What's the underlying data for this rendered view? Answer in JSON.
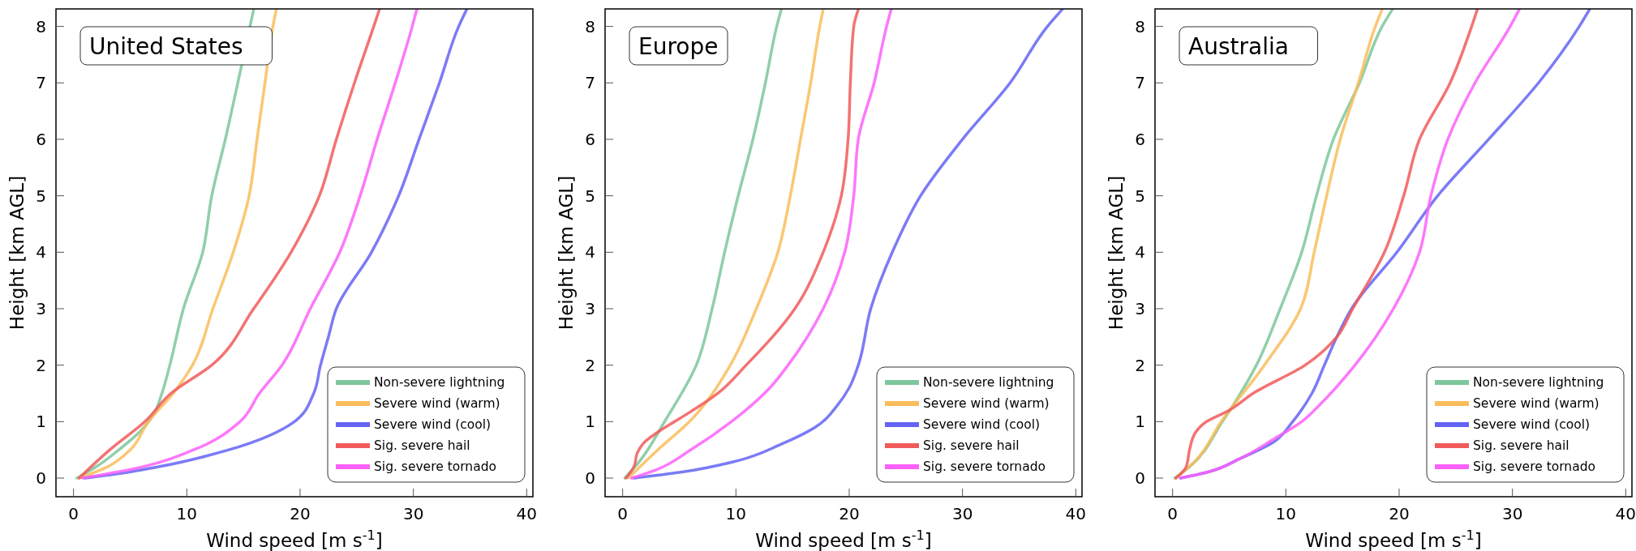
{
  "chart_data": [
    {
      "type": "line",
      "title": "United States",
      "xlabel": "Wind speed [m s$^{-1}$]",
      "ylabel": "Height [km AGL]",
      "xlim": [
        -1.55,
        40.55
      ],
      "ylim": [
        -0.33,
        8.31
      ],
      "xticks": [
        0,
        10,
        20,
        30,
        40
      ],
      "yticks": [
        0,
        1,
        2,
        3,
        4,
        5,
        6,
        7,
        8
      ],
      "grid": false,
      "legend": "bottom right",
      "line_style": "solid",
      "marker": "none",
      "series": [
        {
          "name": "Non-severe lightning",
          "color": "#7cc79b",
          "x": [
            0.3,
            2,
            4,
            6,
            7,
            7.8,
            8.5,
            9.7,
            11.4,
            12.2,
            13.4,
            14.5,
            15.9
          ],
          "values": [
            0,
            0.2,
            0.5,
            0.85,
            1.1,
            1.5,
            2,
            3,
            4,
            5,
            6,
            7,
            8.3
          ]
        },
        {
          "name": "Severe wind (warm)",
          "color": "#f9bd5b",
          "x": [
            0.5,
            3,
            5,
            6.6,
            8.8,
            10.5,
            12.3,
            14.1,
            15.5,
            16.2,
            16.9,
            17.6,
            17.9
          ],
          "values": [
            0,
            0.2,
            0.5,
            1,
            1.5,
            2,
            3,
            4,
            5,
            6,
            7,
            8,
            8.3
          ]
        },
        {
          "name": "Severe wind (cool)",
          "color": "#6464f4",
          "x": [
            1,
            4,
            7.5,
            13.7,
            19.5,
            21.2,
            21.8,
            22.5,
            23.2,
            26.3,
            28.7,
            30.5,
            32.3,
            34,
            34.7
          ],
          "values": [
            0,
            0.08,
            0.2,
            0.5,
            1,
            1.5,
            2,
            2.5,
            3,
            4,
            5,
            6,
            7,
            8,
            8.3
          ]
        },
        {
          "name": "Sig. severe hail",
          "color": "#f15a5a",
          "x": [
            0.5,
            3.2,
            6.3,
            8.6,
            12.2,
            15.9,
            19.2,
            21.7,
            23.2,
            24.8,
            26.5,
            27
          ],
          "values": [
            0,
            0.5,
            1,
            1.5,
            2,
            3,
            4,
            5,
            6,
            7,
            8,
            8.3
          ]
        },
        {
          "name": "Sig. severe tornado",
          "color": "#fb60fb",
          "x": [
            0.8,
            5,
            10.6,
            14.7,
            16.4,
            18.4,
            20.9,
            23.5,
            25.3,
            26.8,
            28.4,
            29.9,
            30.3
          ],
          "values": [
            0,
            0.15,
            0.5,
            1,
            1.5,
            2,
            3,
            4,
            5,
            6,
            7,
            8,
            8.3
          ]
        }
      ]
    },
    {
      "type": "line",
      "title": "Europe",
      "xlabel": "Wind speed [m s$^{-1}$]",
      "ylabel": "Height [km AGL]",
      "xlim": [
        -1.55,
        40.55
      ],
      "ylim": [
        -0.33,
        8.31
      ],
      "xticks": [
        0,
        10,
        20,
        30,
        40
      ],
      "yticks": [
        0,
        1,
        2,
        3,
        4,
        5,
        6,
        7,
        8
      ],
      "grid": false,
      "legend": "bottom right",
      "line_style": "solid",
      "marker": "none",
      "series": [
        {
          "name": "Non-severe lightning",
          "color": "#7cc79b",
          "x": [
            0.2,
            1.5,
            3.7,
            6.5,
            7.9,
            9,
            10.2,
            11.5,
            12.6,
            13.6,
            14
          ],
          "values": [
            0,
            0.3,
            1,
            2,
            3,
            4,
            5,
            6,
            7,
            8,
            8.3
          ]
        },
        {
          "name": "Severe wind (warm)",
          "color": "#f9bd5b",
          "x": [
            0.5,
            3.1,
            5.9,
            9.5,
            11.8,
            13.7,
            14.8,
            15.7,
            16.6,
            17.4,
            17.7
          ],
          "values": [
            0,
            0.5,
            1,
            2,
            3,
            4,
            5,
            6,
            7,
            8,
            8.3
          ]
        },
        {
          "name": "Severe wind (cool)",
          "color": "#6464f4",
          "x": [
            1,
            5,
            10,
            14,
            17,
            19,
            20,
            20.8,
            21.9,
            23.8,
            26.3,
            30,
            34.2,
            37.5,
            38.8
          ],
          "values": [
            0,
            0.1,
            0.3,
            0.6,
            0.9,
            1.3,
            1.6,
            2,
            3,
            4,
            5,
            6,
            7,
            8,
            8.3
          ]
        },
        {
          "name": "Sig. severe hail",
          "color": "#f15a5a",
          "x": [
            0.3,
            1,
            1.3,
            2,
            3,
            5,
            8.4,
            10.9,
            15.2,
            17.7,
            19.3,
            19.9,
            20.1,
            20.4,
            20.8
          ],
          "values": [
            0,
            0.2,
            0.45,
            0.65,
            0.8,
            1.05,
            1.5,
            2,
            3,
            4,
            5,
            6,
            7,
            8,
            8.3
          ]
        },
        {
          "name": "Sig. severe tornado",
          "color": "#fb60fb",
          "x": [
            0.8,
            3,
            6,
            9.6,
            13,
            14.6,
            17.7,
            19.6,
            20.4,
            20.8,
            22.2,
            23.3,
            23.7
          ],
          "values": [
            0,
            0.15,
            0.5,
            1,
            1.6,
            2,
            3,
            4,
            5,
            6,
            7,
            8,
            8.3
          ]
        }
      ]
    },
    {
      "type": "line",
      "title": "Australia",
      "xlabel": "Wind speed [m s$^{-1}$]",
      "ylabel": "Height [km AGL]",
      "xlim": [
        -1.55,
        40.55
      ],
      "ylim": [
        -0.33,
        8.31
      ],
      "xticks": [
        0,
        10,
        20,
        30,
        40
      ],
      "yticks": [
        0,
        1,
        2,
        3,
        4,
        5,
        6,
        7,
        8
      ],
      "grid": false,
      "legend": "bottom right",
      "line_style": "solid",
      "marker": "none",
      "series": [
        {
          "name": "Non-severe lightning",
          "color": "#7cc79b",
          "x": [
            0.2,
            1.5,
            4.4,
            7.4,
            9.5,
            11.4,
            12.7,
            14.2,
            16.5,
            18.5,
            19.4
          ],
          "values": [
            0,
            0.2,
            1,
            2,
            3,
            4,
            5,
            6,
            7,
            8,
            8.3
          ]
        },
        {
          "name": "Severe wind (warm)",
          "color": "#f9bd5b",
          "x": [
            0.3,
            2,
            4.3,
            8.1,
            11.3,
            12.5,
            13.6,
            14.8,
            16.4,
            17.9,
            18.5
          ],
          "values": [
            0,
            0.3,
            1,
            2,
            3,
            4,
            5,
            6,
            7,
            8,
            8.3
          ]
        },
        {
          "name": "Severe wind (cool)",
          "color": "#6464f4",
          "x": [
            0.7,
            3,
            6,
            9,
            10.6,
            12.3,
            13.4,
            14.5,
            15.8,
            19.8,
            23.4,
            27.9,
            32.3,
            35.9,
            36.8
          ],
          "values": [
            0,
            0.1,
            0.35,
            0.65,
            1,
            1.5,
            2,
            2.5,
            3,
            4,
            5,
            6,
            7,
            8,
            8.3
          ]
        },
        {
          "name": "Sig. severe hail",
          "color": "#f15a5a",
          "x": [
            0.3,
            1.2,
            1.5,
            2,
            3,
            5,
            7.1,
            11.7,
            14.5,
            15.9,
            18.7,
            20.4,
            21.8,
            24.5,
            26.4,
            26.9
          ],
          "values": [
            0,
            0.2,
            0.5,
            0.8,
            1,
            1.2,
            1.5,
            2,
            2.5,
            3,
            4,
            5,
            6,
            7,
            8,
            8.3
          ]
        },
        {
          "name": "Sig. severe tornado",
          "color": "#fb60fb",
          "x": [
            0.7,
            3,
            6,
            9,
            11.4,
            13,
            16.1,
            19.5,
            21.8,
            22.8,
            24.3,
            26.7,
            29.8,
            30.6
          ],
          "values": [
            0,
            0.1,
            0.35,
            0.7,
            1,
            1.3,
            2,
            3,
            4,
            5,
            6,
            7,
            8,
            8.3
          ]
        }
      ]
    }
  ]
}
